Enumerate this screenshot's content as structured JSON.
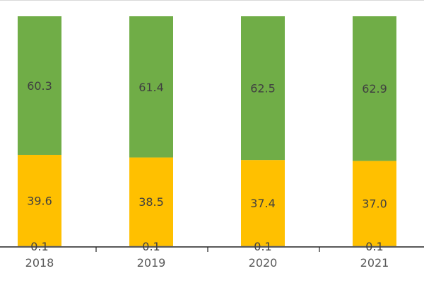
{
  "chart_data": {
    "type": "bar",
    "stacked": true,
    "normalized_percent": true,
    "categories": [
      "2018",
      "2019",
      "2020",
      "2021"
    ],
    "series": [
      {
        "name": "bottom",
        "color": "#404040",
        "values": [
          0.1,
          0.1,
          0.1,
          0.1
        ]
      },
      {
        "name": "middle",
        "color": "#FFC000",
        "values": [
          39.6,
          38.5,
          37.4,
          37.0
        ]
      },
      {
        "name": "top",
        "color": "#70AD47",
        "values": [
          60.3,
          61.4,
          62.5,
          62.9
        ]
      }
    ],
    "ylim": [
      0,
      100
    ],
    "title": "",
    "xlabel": "",
    "ylabel": "",
    "legend": "none"
  }
}
